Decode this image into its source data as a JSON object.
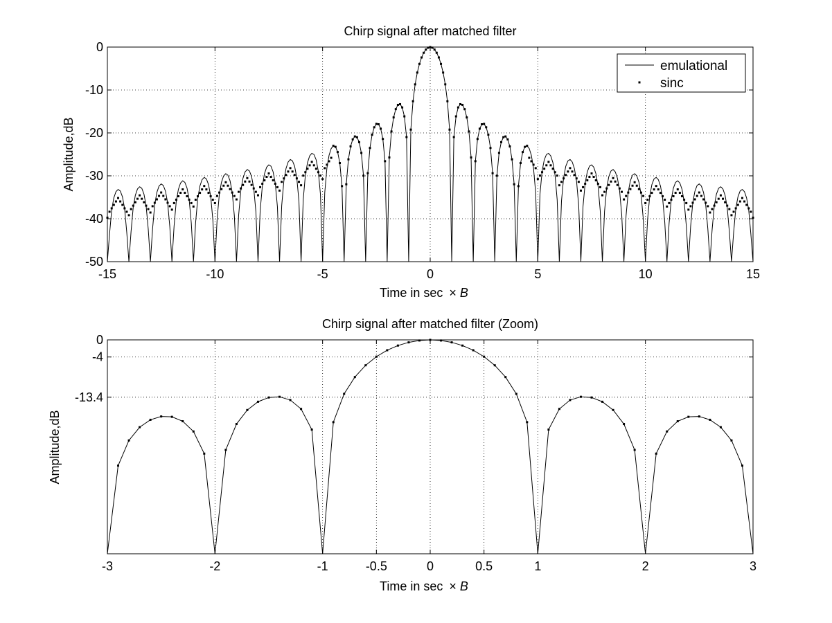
{
  "figure": {
    "background": "#ffffff",
    "line_color": "#000000",
    "grid_color": "#000000"
  },
  "chart_data": [
    {
      "type": "line",
      "title": "Chirp signal after matched filter",
      "xlabel": "Time in sec",
      "xlabel_times": "×",
      "xlabel_var": "B",
      "ylabel": "Amplitude,dB",
      "xlim": [
        -15,
        15
      ],
      "ylim": [
        -50,
        0
      ],
      "xticks": [
        -15,
        -10,
        -5,
        0,
        5,
        10,
        15
      ],
      "yticks": [
        0,
        -10,
        -20,
        -30,
        -40,
        -50
      ],
      "xtick_labels": [
        "-15",
        "-10",
        "-5",
        "0",
        "5",
        "10",
        "15"
      ],
      "ytick_labels": [
        "0",
        "-10",
        "-20",
        "-30",
        "-40",
        "-50"
      ],
      "grid": true,
      "legend": {
        "position": "top-right",
        "entries": [
          {
            "name": "emulational",
            "style": "solid line"
          },
          {
            "name": "sinc",
            "style": "dot markers"
          }
        ]
      },
      "series": [
        {
          "name": "emulational",
          "style": "line",
          "function": "20*log10(|sinc(x)|) (normalized sinc), sampled every 0.1 s·B, clipped at -50 dB",
          "x_range": [
            -15,
            15
          ],
          "x_step": 0.1,
          "sidelobe_peaks_dB": [
            -13.4,
            -17.8,
            -20.8,
            -23.0,
            -24.9,
            -26.4,
            -27.7,
            -28.8,
            -29.8,
            -30.7,
            -31.5,
            -32.3,
            -33.0,
            -33.6
          ]
        },
        {
          "name": "sinc",
          "style": "markers",
          "function": "20*log10(|sin(pi*x)/(pi*x)|) evaluated at samples between nulls (approximately matching emulational near the main lobe, diverging into -30 to -45 dB band for |x| > 5)",
          "x_range": [
            -15,
            15
          ],
          "x_step": 0.1
        }
      ]
    },
    {
      "type": "line",
      "title": "Chirp signal after matched filter (Zoom)",
      "xlabel": "Time in sec",
      "xlabel_times": "×",
      "xlabel_var": "B",
      "ylabel": "Amplitude,dB",
      "xlim": [
        -3,
        3
      ],
      "ylim": [
        -50,
        0
      ],
      "xticks": [
        -3,
        -2,
        -1,
        -0.5,
        0,
        0.5,
        1,
        2,
        3
      ],
      "yticks": [
        0,
        -4,
        -13.4
      ],
      "xtick_labels": [
        "-3",
        "-2",
        "-1",
        "-0.5",
        "0",
        "0.5",
        "1",
        "2",
        "3"
      ],
      "ytick_labels": [
        "0",
        "-4",
        "-13.4"
      ],
      "grid": true,
      "series": [
        {
          "name": "emulational",
          "style": "line",
          "function": "20*log10(|sinc(x)|), sampled every 0.1 s·B, clipped at -50 dB",
          "x_range": [
            -3,
            3
          ],
          "x_step": 0.1
        },
        {
          "name": "sinc",
          "style": "markers",
          "function": "20*log10(|sinc(x)|) at x = ±0.1, ±0.2, ... (markers on the curve)",
          "x_range": [
            -3,
            3
          ],
          "x_step": 0.1
        }
      ]
    }
  ]
}
